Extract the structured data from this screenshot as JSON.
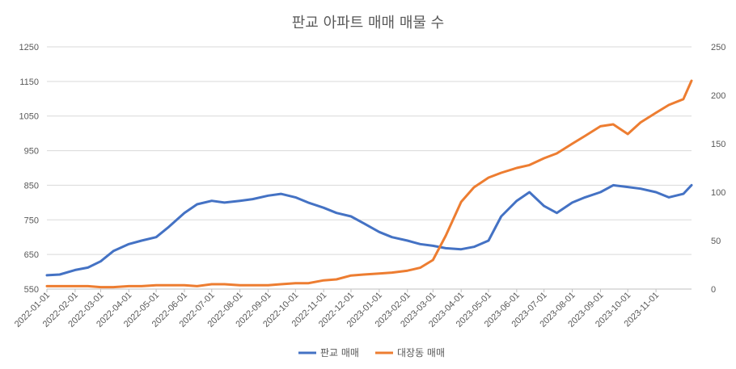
{
  "chart_data": {
    "type": "line",
    "title": "판교 아파트 매매 매물 수",
    "x_type": "date",
    "x_range": [
      "2022-01-01",
      "2023-12-10"
    ],
    "x_tick_labels": [
      "2022-01-01",
      "2022-02-01",
      "2022-03-01",
      "2022-04-01",
      "2022-05-01",
      "2022-06-01",
      "2022-07-01",
      "2022-08-01",
      "2022-09-01",
      "2022-10-01",
      "2022-11-01",
      "2022-12-01",
      "2023-01-01",
      "2023-02-01",
      "2023-03-01",
      "2023-04-01",
      "2023-05-01",
      "2023-06-01",
      "2023-07-01",
      "2023-08-01",
      "2023-09-01",
      "2023-10-01",
      "2023-11-01"
    ],
    "y_left": {
      "range": [
        550,
        1250
      ],
      "ticks": [
        "550",
        "650",
        "750",
        "850",
        "950",
        "1050",
        "1150",
        "1250"
      ]
    },
    "y_right": {
      "range": [
        0,
        250
      ],
      "ticks": [
        "0",
        "50",
        "100",
        "150",
        "200",
        "250"
      ]
    },
    "grid": true,
    "legend_position": "bottom",
    "series": [
      {
        "name": "판교 매매",
        "axis": "left",
        "color": "#4472c4",
        "x": [
          "2022-01-01",
          "2022-01-15",
          "2022-02-01",
          "2022-02-15",
          "2022-03-01",
          "2022-03-15",
          "2022-04-01",
          "2022-04-15",
          "2022-05-01",
          "2022-05-15",
          "2022-06-01",
          "2022-06-15",
          "2022-07-01",
          "2022-07-15",
          "2022-08-01",
          "2022-08-15",
          "2022-09-01",
          "2022-09-15",
          "2022-10-01",
          "2022-10-15",
          "2022-11-01",
          "2022-11-15",
          "2022-12-01",
          "2022-12-15",
          "2023-01-01",
          "2023-01-15",
          "2023-02-01",
          "2023-02-15",
          "2023-03-01",
          "2023-03-15",
          "2023-04-01",
          "2023-04-15",
          "2023-05-01",
          "2023-05-15",
          "2023-06-01",
          "2023-06-15",
          "2023-07-01",
          "2023-07-15",
          "2023-08-01",
          "2023-08-15",
          "2023-09-01",
          "2023-09-15",
          "2023-10-01",
          "2023-10-15",
          "2023-11-01",
          "2023-11-15",
          "2023-12-01",
          "2023-12-10"
        ],
        "y": [
          590,
          592,
          605,
          612,
          630,
          660,
          680,
          690,
          700,
          730,
          770,
          795,
          805,
          800,
          805,
          810,
          820,
          825,
          815,
          800,
          785,
          770,
          760,
          740,
          715,
          700,
          690,
          680,
          675,
          668,
          665,
          672,
          690,
          760,
          805,
          830,
          790,
          770,
          800,
          815,
          830,
          850,
          845,
          840,
          830,
          815,
          825,
          850
        ]
      },
      {
        "name": "대장동 매매",
        "axis": "right",
        "color": "#ed7d31",
        "x": [
          "2022-01-01",
          "2022-01-15",
          "2022-02-01",
          "2022-02-15",
          "2022-03-01",
          "2022-03-15",
          "2022-04-01",
          "2022-04-15",
          "2022-05-01",
          "2022-05-15",
          "2022-06-01",
          "2022-06-15",
          "2022-07-01",
          "2022-07-15",
          "2022-08-01",
          "2022-08-15",
          "2022-09-01",
          "2022-09-15",
          "2022-10-01",
          "2022-10-15",
          "2022-11-01",
          "2022-11-15",
          "2022-12-01",
          "2022-12-15",
          "2023-01-01",
          "2023-01-15",
          "2023-02-01",
          "2023-02-15",
          "2023-03-01",
          "2023-03-15",
          "2023-04-01",
          "2023-04-15",
          "2023-05-01",
          "2023-05-15",
          "2023-06-01",
          "2023-06-15",
          "2023-07-01",
          "2023-07-15",
          "2023-08-01",
          "2023-08-15",
          "2023-09-01",
          "2023-09-15",
          "2023-10-01",
          "2023-10-15",
          "2023-11-01",
          "2023-11-15",
          "2023-12-01",
          "2023-12-10"
        ],
        "y": [
          3,
          3,
          3,
          3,
          2,
          2,
          3,
          3,
          4,
          4,
          4,
          3,
          5,
          5,
          4,
          4,
          4,
          5,
          6,
          6,
          9,
          10,
          14,
          15,
          16,
          17,
          19,
          22,
          30,
          55,
          90,
          105,
          115,
          120,
          125,
          128,
          135,
          140,
          150,
          158,
          168,
          170,
          160,
          172,
          182,
          190,
          196,
          215
        ]
      }
    ]
  }
}
